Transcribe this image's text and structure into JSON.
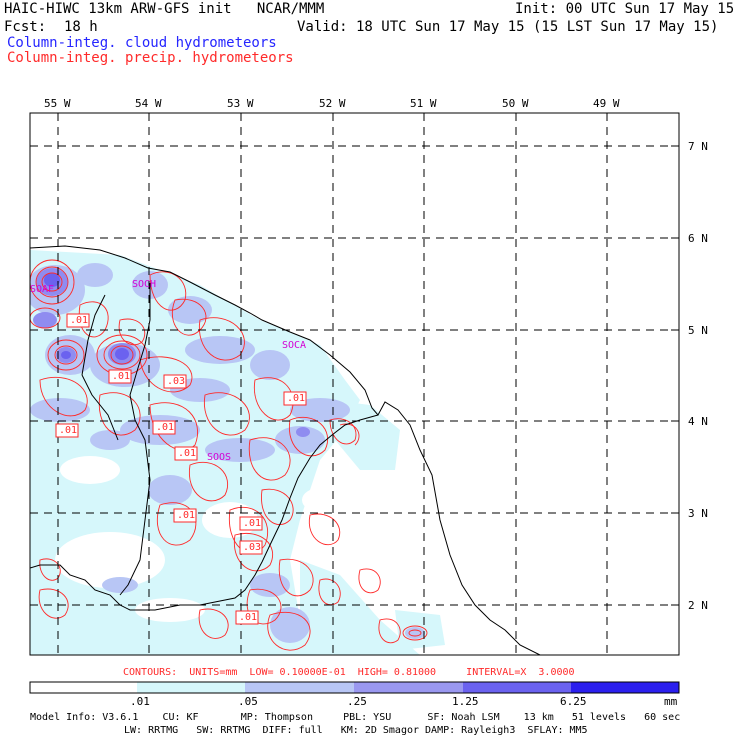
{
  "header": {
    "title_left": "HAIC-HIWC 13km ARW-GFS init   NCAR/MMM",
    "init": "Init: 00 UTC Sun 17 May 15",
    "fcst_label": "Fcst:",
    "fcst_value": "18 h",
    "valid": "Valid: 18 UTC Sun 17 May 15 (15 LST Sun 17 May 15)",
    "field_cloud": "Column-integ. cloud hydrometeors",
    "field_precip": "Column-integ. precip. hydrometeors"
  },
  "map": {
    "lon_labels": [
      "55 W",
      "54 W",
      "53 W",
      "52 W",
      "51 W",
      "50 W",
      "49 W"
    ],
    "lat_labels": [
      "7 N",
      "6 N",
      "5 N",
      "4 N",
      "3 N",
      "2 N"
    ],
    "station_labels": [
      "SOAF",
      "SOCH",
      "SOCA",
      "SOOS"
    ],
    "contour_labels": [
      ".01",
      ".01",
      ".03",
      ".01",
      ".01",
      ".01",
      ".01",
      ".01",
      ".01",
      ".03",
      ".01"
    ],
    "colors": {
      "precip_contour": "#ff2a2a",
      "station": "#d400d4",
      "coast": "#000000",
      "grid": "#000000"
    }
  },
  "contour_info": "CONTOURS:  UNITS=mm  LOW= 0.10000E-01  HIGH= 0.81000     INTERVAL=X  3.0000",
  "colorbar": {
    "ticks": [
      ".01",
      ".05",
      ".25",
      "1.25",
      "6.25"
    ],
    "unit": "mm",
    "colors": [
      "#ffffff",
      "#d6f7fb",
      "#b8c6f5",
      "#9a98f0",
      "#6b62ef",
      "#2b1fee"
    ]
  },
  "model_info": {
    "line1": "Model Info: V3.6.1    CU: KF       MP: Thompson     PBL: YSU      SF: Noah LSM    13 km   51 levels   60 sec",
    "line2": "LW: RRTMG   SW: RRTMG  DIFF: full   KM: 2D Smagor DAMP: Rayleigh3  SFLAY: MM5"
  }
}
